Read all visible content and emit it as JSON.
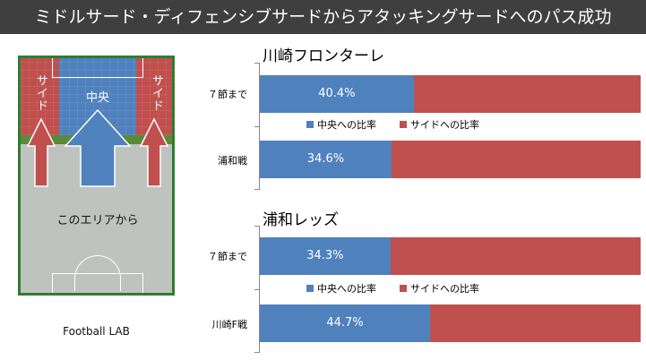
{
  "title": "ミドルサード・ディフェンシブサードからアタッキングサードへのパス成功",
  "pitch": {
    "side_left_label": "サイド",
    "center_label": "中央",
    "side_right_label": "サイド",
    "area_label": "このエリアから"
  },
  "source": "Football LAB",
  "colors": {
    "center": "#4f81bd",
    "side": "#c0504d",
    "title_bg": "#3f3f3f"
  },
  "chart_data": [
    {
      "type": "bar",
      "orientation": "horizontal",
      "stacked": "percent",
      "title": "川崎フロンターレ",
      "categories": [
        "７節まで",
        "浦和戦"
      ],
      "series": [
        {
          "name": "中央への比率",
          "values": [
            40.4,
            34.6
          ]
        },
        {
          "name": "サイドへの比率",
          "values": [
            59.6,
            65.4
          ]
        }
      ],
      "data_labels": [
        "40.4%",
        "34.6%"
      ],
      "xlim": [
        0,
        100
      ]
    },
    {
      "type": "bar",
      "orientation": "horizontal",
      "stacked": "percent",
      "title": "浦和レッズ",
      "categories": [
        "７節まで",
        "川崎F戦"
      ],
      "series": [
        {
          "name": "中央への比率",
          "values": [
            34.3,
            44.7
          ]
        },
        {
          "name": "サイドへの比率",
          "values": [
            65.7,
            55.3
          ]
        }
      ],
      "data_labels": [
        "34.3%",
        "44.7%"
      ],
      "xlim": [
        0,
        100
      ]
    }
  ]
}
